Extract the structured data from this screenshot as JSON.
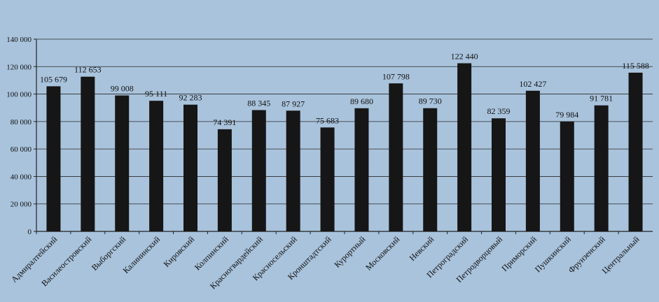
{
  "chart_data": {
    "type": "bar",
    "categories": [
      "Адмиралтейский",
      "Василеостровский",
      "Выборгский",
      "Калининский",
      "Кировский",
      "Колпинский",
      "Красногвардейский",
      "Красносельский",
      "Кронштадтский",
      "Курортный",
      "Московский",
      "Невский",
      "Петроградский",
      "Петродворцовый",
      "Приморский",
      "Пушкинский",
      "Фрунзенский",
      "Центральный"
    ],
    "values": [
      105679,
      112653,
      99008,
      95111,
      92283,
      74391,
      88345,
      87927,
      75683,
      89680,
      107798,
      89730,
      122440,
      82359,
      102427,
      79984,
      91781,
      115588
    ],
    "value_labels": [
      "105 679",
      "112 653",
      "99 008",
      "95 111",
      "92 283",
      "74 391",
      "88 345",
      "87 927",
      "75 683",
      "89 680",
      "107 798",
      "89 730",
      "122 440",
      "82 359",
      "102 427",
      "79 984",
      "91 781",
      "115 588"
    ],
    "yticks": [
      0,
      20000,
      40000,
      60000,
      80000,
      100000,
      120000,
      140000
    ],
    "ytick_labels": [
      "0",
      "20 000",
      "40 000",
      "60 000",
      "80 000",
      "100 000",
      "120 000",
      "140 000"
    ],
    "ylim": [
      0,
      140000
    ],
    "grid": true,
    "colors": {
      "background": "#a9c3dc",
      "bar": "#161616",
      "axis": "#222222",
      "grid": "#2a2a2a"
    }
  }
}
